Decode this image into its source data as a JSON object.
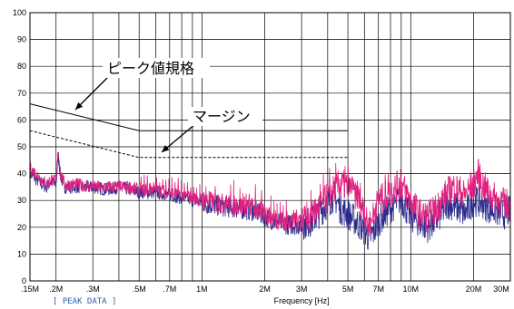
{
  "chart_data": {
    "type": "line",
    "title": "",
    "xlabel": "Frequency [Hz]",
    "ylabel": "",
    "x_scale": "log",
    "xlim": [
      0.15,
      30
    ],
    "ylim": [
      0,
      100
    ],
    "grid": true,
    "y_ticks": [
      0,
      10,
      20,
      30,
      40,
      50,
      60,
      70,
      80,
      90,
      100
    ],
    "x_ticks": [
      {
        "v": 0.15,
        "label": ".15M"
      },
      {
        "v": 0.2,
        "label": ".2M"
      },
      {
        "v": 0.3,
        "label": ".3M"
      },
      {
        "v": 0.5,
        "label": ".5M"
      },
      {
        "v": 0.7,
        "label": ".7M"
      },
      {
        "v": 1,
        "label": "1M"
      },
      {
        "v": 2,
        "label": "2M"
      },
      {
        "v": 3,
        "label": "3M"
      },
      {
        "v": 5,
        "label": "5M"
      },
      {
        "v": 7,
        "label": "7M"
      },
      {
        "v": 10,
        "label": "10M"
      },
      {
        "v": 20,
        "label": "20M"
      },
      {
        "v": 30,
        "label": "30M"
      }
    ],
    "x_grid": [
      0.15,
      0.2,
      0.3,
      0.4,
      0.5,
      0.6,
      0.7,
      0.8,
      0.9,
      1,
      2,
      3,
      4,
      5,
      6,
      7,
      8,
      9,
      10,
      20,
      30
    ],
    "footer_label": "[ PEAK DATA ]",
    "limit_lines": [
      {
        "name": "ピーク値規格",
        "style": "solid",
        "color": "#000000",
        "points": [
          [
            0.15,
            66
          ],
          [
            0.5,
            56
          ],
          [
            0.5,
            56
          ],
          [
            5,
            56
          ]
        ]
      },
      {
        "name": "マージン",
        "style": "dashed",
        "color": "#000000",
        "points": [
          [
            0.15,
            56
          ],
          [
            0.5,
            46
          ],
          [
            0.5,
            46
          ],
          [
            5,
            46
          ]
        ]
      }
    ],
    "series": [
      {
        "color": "#2b2b8c",
        "points": [
          [
            0.15,
            40
          ],
          [
            0.16,
            38
          ],
          [
            0.17,
            36
          ],
          [
            0.18,
            35
          ],
          [
            0.19,
            37
          ],
          [
            0.2,
            36
          ],
          [
            0.205,
            47
          ],
          [
            0.21,
            39
          ],
          [
            0.22,
            35
          ],
          [
            0.25,
            35
          ],
          [
            0.3,
            35
          ],
          [
            0.35,
            34
          ],
          [
            0.4,
            35
          ],
          [
            0.45,
            34
          ],
          [
            0.5,
            33
          ],
          [
            0.6,
            33
          ],
          [
            0.7,
            32
          ],
          [
            0.8,
            31
          ],
          [
            0.9,
            30
          ],
          [
            1,
            29
          ],
          [
            1.2,
            28
          ],
          [
            1.5,
            27
          ],
          [
            1.8,
            26
          ],
          [
            2,
            24
          ],
          [
            2.3,
            22
          ],
          [
            2.6,
            21
          ],
          [
            3,
            21
          ],
          [
            3.3,
            22
          ],
          [
            3.6,
            25
          ],
          [
            4,
            29
          ],
          [
            4.3,
            32
          ],
          [
            4.6,
            27
          ],
          [
            5,
            25
          ],
          [
            5.5,
            22
          ],
          [
            6,
            19
          ],
          [
            6.3,
            16
          ],
          [
            6.6,
            18
          ],
          [
            7,
            22
          ],
          [
            7.5,
            25
          ],
          [
            8,
            27
          ],
          [
            8.5,
            29
          ],
          [
            9,
            31
          ],
          [
            9.5,
            27
          ],
          [
            10,
            24
          ],
          [
            11,
            22
          ],
          [
            12,
            20
          ],
          [
            13,
            22
          ],
          [
            14,
            25
          ],
          [
            15,
            29
          ],
          [
            16,
            28
          ],
          [
            17,
            27
          ],
          [
            18,
            25
          ],
          [
            19,
            27
          ],
          [
            20,
            30
          ],
          [
            22,
            29
          ],
          [
            24,
            27
          ],
          [
            26,
            26
          ],
          [
            28,
            25
          ],
          [
            30,
            26
          ]
        ]
      },
      {
        "color": "#e0207e",
        "points": [
          [
            0.15,
            42
          ],
          [
            0.16,
            40
          ],
          [
            0.17,
            38
          ],
          [
            0.18,
            36
          ],
          [
            0.19,
            38
          ],
          [
            0.2,
            37
          ],
          [
            0.205,
            49
          ],
          [
            0.21,
            40
          ],
          [
            0.22,
            36
          ],
          [
            0.25,
            36
          ],
          [
            0.3,
            35
          ],
          [
            0.35,
            35
          ],
          [
            0.4,
            35
          ],
          [
            0.45,
            35
          ],
          [
            0.5,
            34
          ],
          [
            0.6,
            34
          ],
          [
            0.7,
            33
          ],
          [
            0.8,
            32
          ],
          [
            0.9,
            31
          ],
          [
            1,
            30
          ],
          [
            1.2,
            29
          ],
          [
            1.5,
            28
          ],
          [
            1.8,
            27
          ],
          [
            2,
            25
          ],
          [
            2.3,
            23
          ],
          [
            2.6,
            22
          ],
          [
            3,
            23
          ],
          [
            3.3,
            24
          ],
          [
            3.6,
            27
          ],
          [
            4,
            31
          ],
          [
            4.3,
            34
          ],
          [
            4.6,
            36
          ],
          [
            5,
            35
          ],
          [
            5.5,
            32
          ],
          [
            6,
            26
          ],
          [
            6.3,
            20
          ],
          [
            6.6,
            24
          ],
          [
            7,
            30
          ],
          [
            7.5,
            31
          ],
          [
            8,
            33
          ],
          [
            8.5,
            35
          ],
          [
            9,
            36
          ],
          [
            9.5,
            33
          ],
          [
            10,
            30
          ],
          [
            11,
            25
          ],
          [
            12,
            24
          ],
          [
            13,
            26
          ],
          [
            14,
            30
          ],
          [
            15,
            33
          ],
          [
            16,
            35
          ],
          [
            17,
            34
          ],
          [
            18,
            32
          ],
          [
            19,
            34
          ],
          [
            20,
            36
          ],
          [
            21,
            40
          ],
          [
            22,
            36
          ],
          [
            24,
            32
          ],
          [
            26,
            30
          ],
          [
            28,
            29
          ],
          [
            30,
            28
          ]
        ]
      }
    ]
  }
}
